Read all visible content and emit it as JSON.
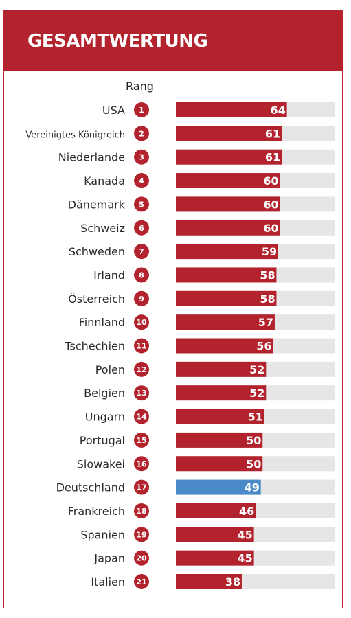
{
  "title": "GESAMTWERTUNG",
  "rank_header": "Rang",
  "colors": {
    "accent": "#b2232d",
    "highlight": "#4a8ac8",
    "track": "#e6e6e6",
    "highlight_text": "#3d7fc1"
  },
  "highlight_country": "Deutschland",
  "chart_data": {
    "type": "bar",
    "orientation": "horizontal",
    "title": "GESAMTWERTUNG",
    "xlim": [
      0,
      100
    ],
    "grid": false,
    "categories": [
      "USA",
      "Vereinigtes Königreich",
      "Niederlande",
      "Kanada",
      "Dänemark",
      "Schweiz",
      "Schweden",
      "Irland",
      "Österreich",
      "Finnland",
      "Tschechien",
      "Polen",
      "Belgien",
      "Ungarn",
      "Portugal",
      "Slowakei",
      "Deutschland",
      "Frankreich",
      "Spanien",
      "Japan",
      "Italien"
    ],
    "ranks": [
      "1",
      "2",
      "3",
      "4",
      "5",
      "6",
      "7",
      "8",
      "9",
      "10",
      "11",
      "12",
      "13",
      "14",
      "15",
      "16",
      "17",
      "18",
      "19",
      "20",
      "21"
    ],
    "values": [
      64,
      61,
      61,
      60,
      60,
      60,
      59,
      58,
      58,
      57,
      56,
      52,
      52,
      51,
      50,
      50,
      49,
      46,
      45,
      45,
      38
    ]
  }
}
